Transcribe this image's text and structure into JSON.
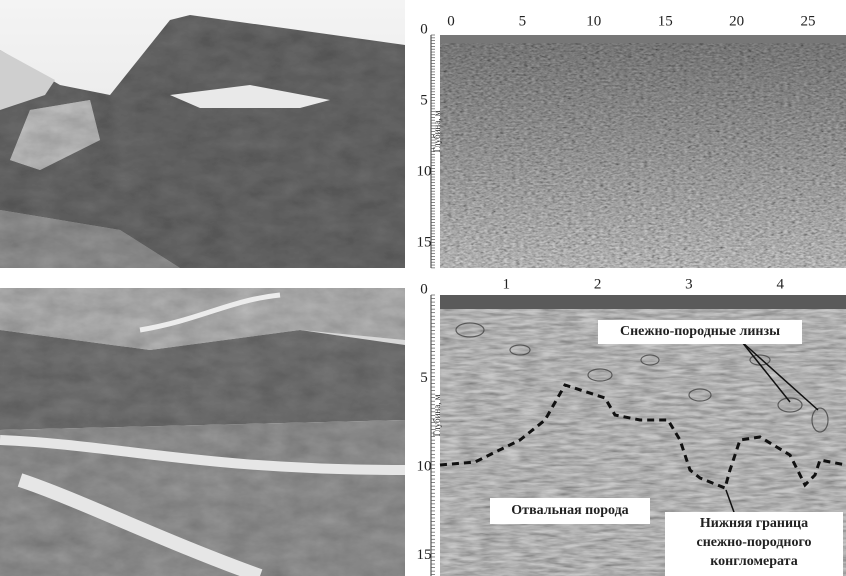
{
  "top_radargram": {
    "x_ticks": [
      "0",
      "5",
      "10",
      "15",
      "20",
      "25"
    ],
    "depth_ticks": [
      "0",
      "5",
      "10",
      "15"
    ],
    "depth_label": "Глубина, м"
  },
  "bottom_radargram": {
    "x_ticks": [
      "1",
      "2",
      "3",
      "4"
    ],
    "depth_ticks": [
      "0",
      "5",
      "10",
      "15"
    ],
    "depth_label": "Глубина, м",
    "annotations": {
      "lenses": "Снежно-породные линзы",
      "rock": "Отвальная порода",
      "boundary": [
        "Нижняя граница",
        "снежно-породного",
        "конгломерата"
      ]
    }
  }
}
